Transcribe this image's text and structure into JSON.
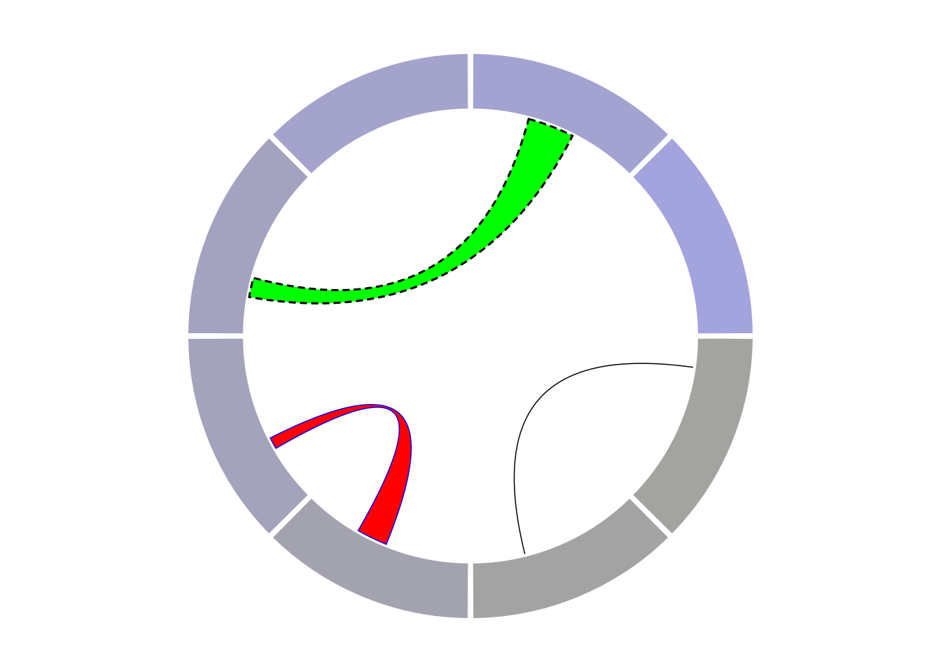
{
  "chart_data": {
    "type": "chord",
    "title": "",
    "sectors": [
      {
        "color": "#a3a3d2",
        "start_deg": 0,
        "end_deg": 45
      },
      {
        "color": "#a3a3dd",
        "start_deg": 45,
        "end_deg": 90
      },
      {
        "color": "#a3a3a0",
        "start_deg": 90,
        "end_deg": 135
      },
      {
        "color": "#a3a3a3",
        "start_deg": 135,
        "end_deg": 180
      },
      {
        "color": "#a3a3b0",
        "start_deg": 180,
        "end_deg": 225
      },
      {
        "color": "#a3a3bb",
        "start_deg": 225,
        "end_deg": 270
      },
      {
        "color": "#a3a3c0",
        "start_deg": 270,
        "end_deg": 315
      },
      {
        "color": "#a3a3cb",
        "start_deg": 315,
        "end_deg": 360
      }
    ],
    "links": [
      {
        "from_deg": [
          15,
          27
        ],
        "to_deg": [
          280,
          285
        ],
        "fill": "#00ff00",
        "stroke": "#000000",
        "dashed": true
      },
      {
        "from_deg": [
          202,
          210
        ],
        "to_deg": [
          240,
          243
        ],
        "fill": "#ff0000",
        "stroke": "#0000ff",
        "dashed": false
      },
      {
        "from_deg": [
          98,
          98
        ],
        "to_deg": [
          166,
          166
        ],
        "fill": "none",
        "stroke": "#000000",
        "dashed": false
      }
    ]
  }
}
